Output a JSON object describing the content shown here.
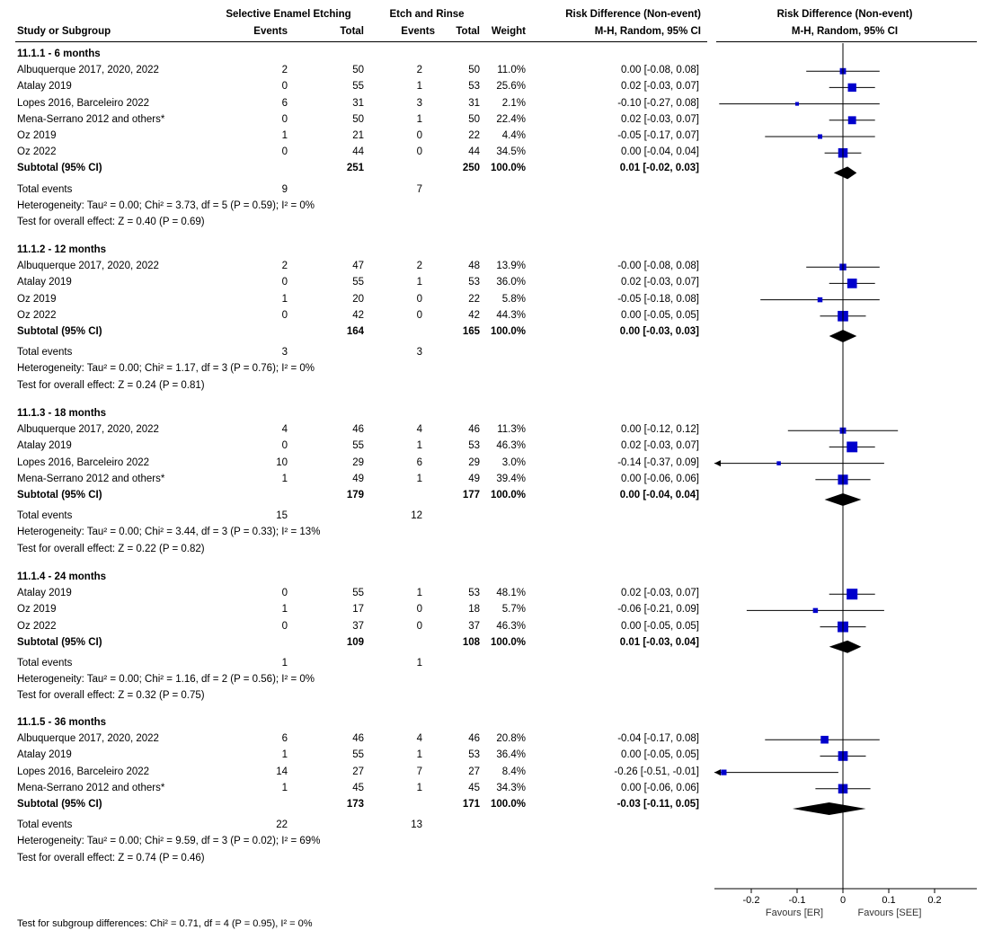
{
  "header": {
    "group1": "Selective Enamel Etching",
    "group2": "Etch and Rinse",
    "rd_col": "Risk Difference (Non-event)",
    "rd_method": "M-H, Random, 95% CI",
    "plot_title": "Risk Difference (Non-event)",
    "plot_method": "M-H, Random, 95% CI",
    "study_col": "Study or Subgroup",
    "events1": "Events",
    "total1": "Total",
    "events2": "Events",
    "total2": "Total",
    "weight": "Weight"
  },
  "footer": {
    "subgroup_test": "Test for subgroup differences: Chi² = 0.71, df = 4 (P = 0.95), I² = 0%",
    "favours_left": "Favours [ER]",
    "favours_right": "Favours [SEE]"
  },
  "chart_data": {
    "type": "forest",
    "x_axis": {
      "min": -0.28,
      "max": 0.28,
      "ticks": [
        -0.2,
        -0.1,
        0,
        0.1,
        0.2
      ],
      "tick_labels": [
        "-0.2",
        "-0.1",
        "0",
        "0.1",
        "0.2"
      ]
    },
    "colors": {
      "marker": "#0000cc",
      "diamond": "#000000",
      "line": "#000000"
    },
    "subgroups": [
      {
        "title": "11.1.1 - 6 months",
        "studies": [
          {
            "name": "Albuquerque 2017, 2020, 2022",
            "e1": "2",
            "n1": "50",
            "e2": "2",
            "n2": "50",
            "weight": "11.0%",
            "ci_text": "0.00 [-0.08, 0.08]",
            "est": 0.0,
            "lo": -0.08,
            "hi": 0.08,
            "w": 11.0
          },
          {
            "name": "Atalay 2019",
            "e1": "0",
            "n1": "55",
            "e2": "1",
            "n2": "53",
            "weight": "25.6%",
            "ci_text": "0.02 [-0.03, 0.07]",
            "est": 0.02,
            "lo": -0.03,
            "hi": 0.07,
            "w": 25.6
          },
          {
            "name": "Lopes 2016, Barceleiro 2022",
            "e1": "6",
            "n1": "31",
            "e2": "3",
            "n2": "31",
            "weight": "2.1%",
            "ci_text": "-0.10 [-0.27, 0.08]",
            "est": -0.1,
            "lo": -0.27,
            "hi": 0.08,
            "w": 2.1
          },
          {
            "name": "Mena-Serrano 2012 and others*",
            "e1": "0",
            "n1": "50",
            "e2": "1",
            "n2": "50",
            "weight": "22.4%",
            "ci_text": "0.02 [-0.03, 0.07]",
            "est": 0.02,
            "lo": -0.03,
            "hi": 0.07,
            "w": 22.4
          },
          {
            "name": "Oz 2019",
            "e1": "1",
            "n1": "21",
            "e2": "0",
            "n2": "22",
            "weight": "4.4%",
            "ci_text": "-0.05 [-0.17, 0.07]",
            "est": -0.05,
            "lo": -0.17,
            "hi": 0.07,
            "w": 4.4
          },
          {
            "name": "Oz 2022",
            "e1": "0",
            "n1": "44",
            "e2": "0",
            "n2": "44",
            "weight": "34.5%",
            "ci_text": "0.00 [-0.04, 0.04]",
            "est": 0.0,
            "lo": -0.04,
            "hi": 0.04,
            "w": 34.5
          }
        ],
        "subtotal": {
          "label": "Subtotal (95% CI)",
          "n1": "251",
          "n2": "250",
          "weight": "100.0%",
          "ci_text": "0.01 [-0.02, 0.03]",
          "est": 0.01,
          "lo": -0.02,
          "hi": 0.03
        },
        "total_events": {
          "label": "Total events",
          "e1": "9",
          "e2": "7"
        },
        "heterogeneity": "Heterogeneity: Tau² = 0.00; Chi² = 3.73, df = 5 (P = 0.59); I² = 0%",
        "overall": "Test for overall effect: Z = 0.40 (P = 0.69)"
      },
      {
        "title": "11.1.2 - 12 months",
        "studies": [
          {
            "name": "Albuquerque 2017, 2020, 2022",
            "e1": "2",
            "n1": "47",
            "e2": "2",
            "n2": "48",
            "weight": "13.9%",
            "ci_text": "-0.00 [-0.08, 0.08]",
            "est": 0.0,
            "lo": -0.08,
            "hi": 0.08,
            "w": 13.9
          },
          {
            "name": "Atalay 2019",
            "e1": "0",
            "n1": "55",
            "e2": "1",
            "n2": "53",
            "weight": "36.0%",
            "ci_text": "0.02 [-0.03, 0.07]",
            "est": 0.02,
            "lo": -0.03,
            "hi": 0.07,
            "w": 36.0
          },
          {
            "name": "Oz 2019",
            "e1": "1",
            "n1": "20",
            "e2": "0",
            "n2": "22",
            "weight": "5.8%",
            "ci_text": "-0.05 [-0.18, 0.08]",
            "est": -0.05,
            "lo": -0.18,
            "hi": 0.08,
            "w": 5.8
          },
          {
            "name": "Oz 2022",
            "e1": "0",
            "n1": "42",
            "e2": "0",
            "n2": "42",
            "weight": "44.3%",
            "ci_text": "0.00 [-0.05, 0.05]",
            "est": 0.0,
            "lo": -0.05,
            "hi": 0.05,
            "w": 44.3
          }
        ],
        "subtotal": {
          "label": "Subtotal (95% CI)",
          "n1": "164",
          "n2": "165",
          "weight": "100.0%",
          "ci_text": "0.00 [-0.03, 0.03]",
          "est": 0.0,
          "lo": -0.03,
          "hi": 0.03
        },
        "total_events": {
          "label": "Total events",
          "e1": "3",
          "e2": "3"
        },
        "heterogeneity": "Heterogeneity: Tau² = 0.00; Chi² = 1.17, df = 3 (P = 0.76); I² = 0%",
        "overall": "Test for overall effect: Z = 0.24 (P = 0.81)"
      },
      {
        "title": "11.1.3 - 18 months",
        "studies": [
          {
            "name": "Albuquerque 2017, 2020, 2022",
            "e1": "4",
            "n1": "46",
            "e2": "4",
            "n2": "46",
            "weight": "11.3%",
            "ci_text": "0.00 [-0.12, 0.12]",
            "est": 0.0,
            "lo": -0.12,
            "hi": 0.12,
            "w": 11.3
          },
          {
            "name": "Atalay 2019",
            "e1": "0",
            "n1": "55",
            "e2": "1",
            "n2": "53",
            "weight": "46.3%",
            "ci_text": "0.02 [-0.03, 0.07]",
            "est": 0.02,
            "lo": -0.03,
            "hi": 0.07,
            "w": 46.3
          },
          {
            "name": "Lopes 2016, Barceleiro 2022",
            "e1": "10",
            "n1": "29",
            "e2": "6",
            "n2": "29",
            "weight": "3.0%",
            "ci_text": "-0.14 [-0.37, 0.09]",
            "est": -0.14,
            "lo": -0.37,
            "hi": 0.09,
            "w": 3.0
          },
          {
            "name": "Mena-Serrano 2012 and others*",
            "e1": "1",
            "n1": "49",
            "e2": "1",
            "n2": "49",
            "weight": "39.4%",
            "ci_text": "0.00 [-0.06, 0.06]",
            "est": 0.0,
            "lo": -0.06,
            "hi": 0.06,
            "w": 39.4
          }
        ],
        "subtotal": {
          "label": "Subtotal (95% CI)",
          "n1": "179",
          "n2": "177",
          "weight": "100.0%",
          "ci_text": "0.00 [-0.04, 0.04]",
          "est": 0.0,
          "lo": -0.04,
          "hi": 0.04
        },
        "total_events": {
          "label": "Total events",
          "e1": "15",
          "e2": "12"
        },
        "heterogeneity": "Heterogeneity: Tau² = 0.00; Chi² = 3.44, df = 3 (P = 0.33); I² = 13%",
        "overall": "Test for overall effect: Z = 0.22 (P = 0.82)"
      },
      {
        "title": "11.1.4 - 24 months",
        "studies": [
          {
            "name": "Atalay 2019",
            "e1": "0",
            "n1": "55",
            "e2": "1",
            "n2": "53",
            "weight": "48.1%",
            "ci_text": "0.02 [-0.03, 0.07]",
            "est": 0.02,
            "lo": -0.03,
            "hi": 0.07,
            "w": 48.1
          },
          {
            "name": "Oz 2019",
            "e1": "1",
            "n1": "17",
            "e2": "0",
            "n2": "18",
            "weight": "5.7%",
            "ci_text": "-0.06 [-0.21, 0.09]",
            "est": -0.06,
            "lo": -0.21,
            "hi": 0.09,
            "w": 5.7
          },
          {
            "name": "Oz 2022",
            "e1": "0",
            "n1": "37",
            "e2": "0",
            "n2": "37",
            "weight": "46.3%",
            "ci_text": "0.00 [-0.05, 0.05]",
            "est": 0.0,
            "lo": -0.05,
            "hi": 0.05,
            "w": 46.3
          }
        ],
        "subtotal": {
          "label": "Subtotal (95% CI)",
          "n1": "109",
          "n2": "108",
          "weight": "100.0%",
          "ci_text": "0.01 [-0.03, 0.04]",
          "est": 0.01,
          "lo": -0.03,
          "hi": 0.04
        },
        "total_events": {
          "label": "Total events",
          "e1": "1",
          "e2": "1"
        },
        "heterogeneity": "Heterogeneity: Tau² = 0.00; Chi² = 1.16, df = 2 (P = 0.56); I² = 0%",
        "overall": "Test for overall effect: Z = 0.32 (P = 0.75)"
      },
      {
        "title": "11.1.5 - 36 months",
        "studies": [
          {
            "name": "Albuquerque 2017, 2020, 2022",
            "e1": "6",
            "n1": "46",
            "e2": "4",
            "n2": "46",
            "weight": "20.8%",
            "ci_text": "-0.04 [-0.17, 0.08]",
            "est": -0.04,
            "lo": -0.17,
            "hi": 0.08,
            "w": 20.8
          },
          {
            "name": "Atalay 2019",
            "e1": "1",
            "n1": "55",
            "e2": "1",
            "n2": "53",
            "weight": "36.4%",
            "ci_text": "0.00 [-0.05, 0.05]",
            "est": 0.0,
            "lo": -0.05,
            "hi": 0.05,
            "w": 36.4
          },
          {
            "name": "Lopes 2016, Barceleiro 2022",
            "e1": "14",
            "n1": "27",
            "e2": "7",
            "n2": "27",
            "weight": "8.4%",
            "ci_text": "-0.26 [-0.51, -0.01]",
            "est": -0.26,
            "lo": -0.51,
            "hi": -0.01,
            "w": 8.4
          },
          {
            "name": "Mena-Serrano 2012 and others*",
            "e1": "1",
            "n1": "45",
            "e2": "1",
            "n2": "45",
            "weight": "34.3%",
            "ci_text": "0.00 [-0.06, 0.06]",
            "est": 0.0,
            "lo": -0.06,
            "hi": 0.06,
            "w": 34.3
          }
        ],
        "subtotal": {
          "label": "Subtotal (95% CI)",
          "n1": "173",
          "n2": "171",
          "weight": "100.0%",
          "ci_text": "-0.03 [-0.11, 0.05]",
          "est": -0.03,
          "lo": -0.11,
          "hi": 0.05
        },
        "total_events": {
          "label": "Total events",
          "e1": "22",
          "e2": "13"
        },
        "heterogeneity": "Heterogeneity: Tau² = 0.00; Chi² = 9.59, df = 3 (P = 0.02); I² = 69%",
        "overall": "Test for overall effect: Z = 0.74 (P = 0.46)"
      }
    ]
  }
}
